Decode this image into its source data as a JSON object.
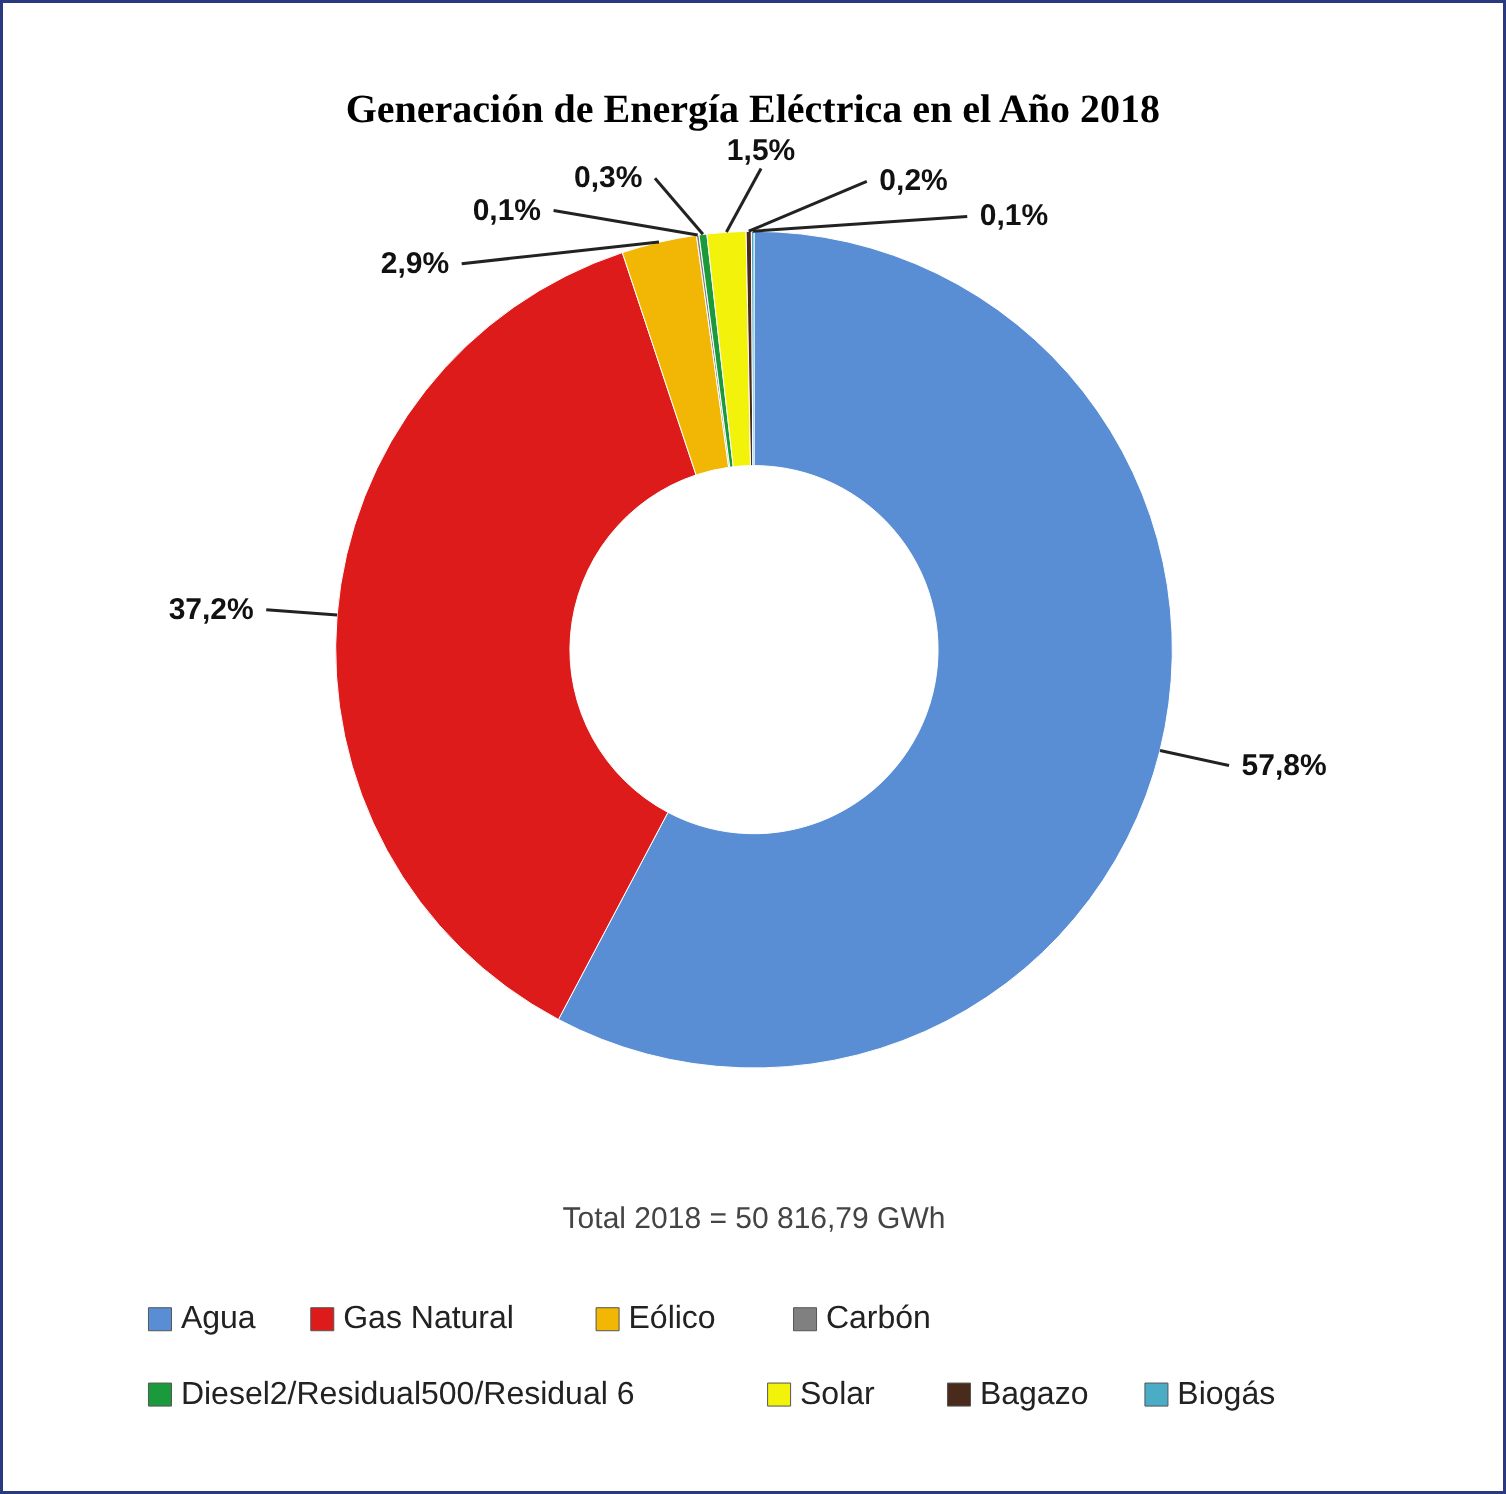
{
  "chart_data": {
    "type": "donut",
    "title": "Generación de Energía Eléctrica en el Año 2018",
    "categories": [
      "Agua",
      "Gas Natural",
      "Eólico",
      "Carbón",
      "Diesel2/Residual500/Residual 6",
      "Solar",
      "Bagazo",
      "Biogás"
    ],
    "values": [
      57.8,
      37.2,
      2.9,
      0.1,
      0.3,
      1.5,
      0.2,
      0.1
    ],
    "colors": [
      "#5a8ed4",
      "#de1b1b",
      "#f2b705",
      "#808080",
      "#1a9a3a",
      "#f2f20a",
      "#4a2a1a",
      "#4bacc6"
    ],
    "value_labels": [
      "57,8%",
      "37,2%",
      "2,9%",
      "0,1%",
      "0,3%",
      "1,5%",
      "0,2%",
      "0,1%"
    ],
    "annotations": [
      "Total 2018 = 50 816,79 GWh"
    ],
    "legend": "bottom"
  }
}
